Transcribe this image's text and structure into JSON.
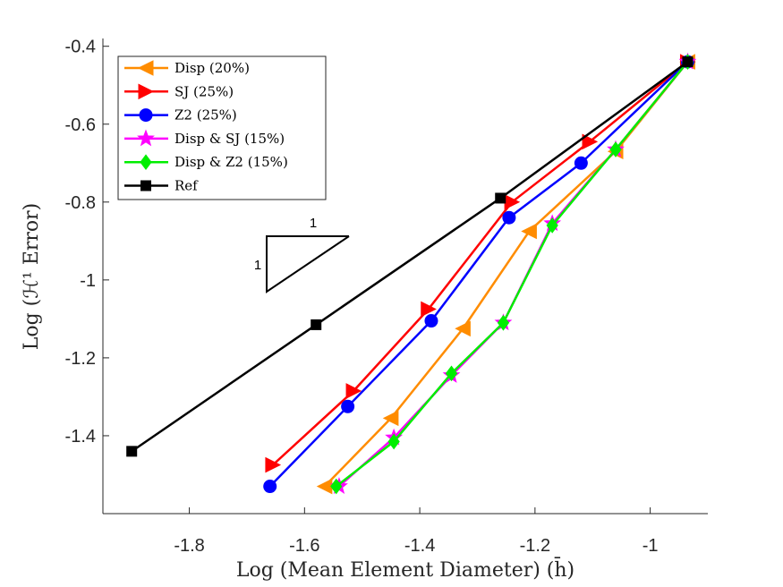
{
  "chart_data": {
    "type": "line",
    "xlabel": "Log (Mean Element Diameter)  (h̄)",
    "ylabel": "Log (ℋ¹ Error)",
    "xlim": [
      -1.95,
      -0.9
    ],
    "ylim": [
      -1.6,
      -0.38
    ],
    "x_ticks": [
      -1.8,
      -1.6,
      -1.4,
      -1.2,
      -1
    ],
    "x_tick_labels": [
      "-1.8",
      "-1.6",
      "-1.4",
      "-1.2",
      "-1"
    ],
    "y_ticks": [
      -0.4,
      -0.6,
      -0.8,
      -1,
      -1.2,
      -1.4
    ],
    "y_tick_labels": [
      "-0.4",
      "-0.6",
      "-0.8",
      "-1",
      "-1.2",
      "-1.4"
    ],
    "grid": false,
    "legend_position": "top-left",
    "slope_triangle": {
      "horizontal_label": "1",
      "vertical_label": "1"
    },
    "series": [
      {
        "name": "Disp (20%)",
        "color": "#ff8c00",
        "marker": "triangle-left",
        "x": [
          -1.565,
          -1.45,
          -1.325,
          -1.21,
          -1.06,
          -0.935
        ],
        "y": [
          -1.53,
          -1.355,
          -1.125,
          -0.875,
          -0.67,
          -0.44
        ]
      },
      {
        "name": "SJ (25%)",
        "color": "#ff0000",
        "marker": "triangle-right",
        "x": [
          -1.655,
          -1.515,
          -1.385,
          -1.24,
          -1.105,
          -0.935
        ],
        "y": [
          -1.475,
          -1.285,
          -1.075,
          -0.8,
          -0.645,
          -0.44
        ]
      },
      {
        "name": "Z2 (25%)",
        "color": "#0000ff",
        "marker": "circle",
        "x": [
          -1.66,
          -1.525,
          -1.38,
          -1.245,
          -1.12,
          -0.935
        ],
        "y": [
          -1.53,
          -1.325,
          -1.105,
          -0.84,
          -0.7,
          -0.44
        ]
      },
      {
        "name": "Disp & SJ (15%)",
        "color": "#ff00ff",
        "marker": "star",
        "x": [
          -1.54,
          -1.445,
          -1.345,
          -1.255,
          -1.17,
          -1.06,
          -0.935
        ],
        "y": [
          -1.53,
          -1.405,
          -1.245,
          -1.11,
          -0.855,
          -0.665,
          -0.44
        ]
      },
      {
        "name": "Disp & Z2 (15%)",
        "color": "#00ee00",
        "marker": "diamond",
        "x": [
          -1.545,
          -1.445,
          -1.345,
          -1.255,
          -1.17,
          -1.06,
          -0.935
        ],
        "y": [
          -1.53,
          -1.415,
          -1.24,
          -1.11,
          -0.86,
          -0.665,
          -0.44
        ]
      },
      {
        "name": "Ref",
        "color": "#000000",
        "marker": "square",
        "x": [
          -1.9,
          -1.58,
          -1.26,
          -0.935
        ],
        "y": [
          -1.44,
          -1.115,
          -0.79,
          -0.44
        ]
      }
    ]
  }
}
